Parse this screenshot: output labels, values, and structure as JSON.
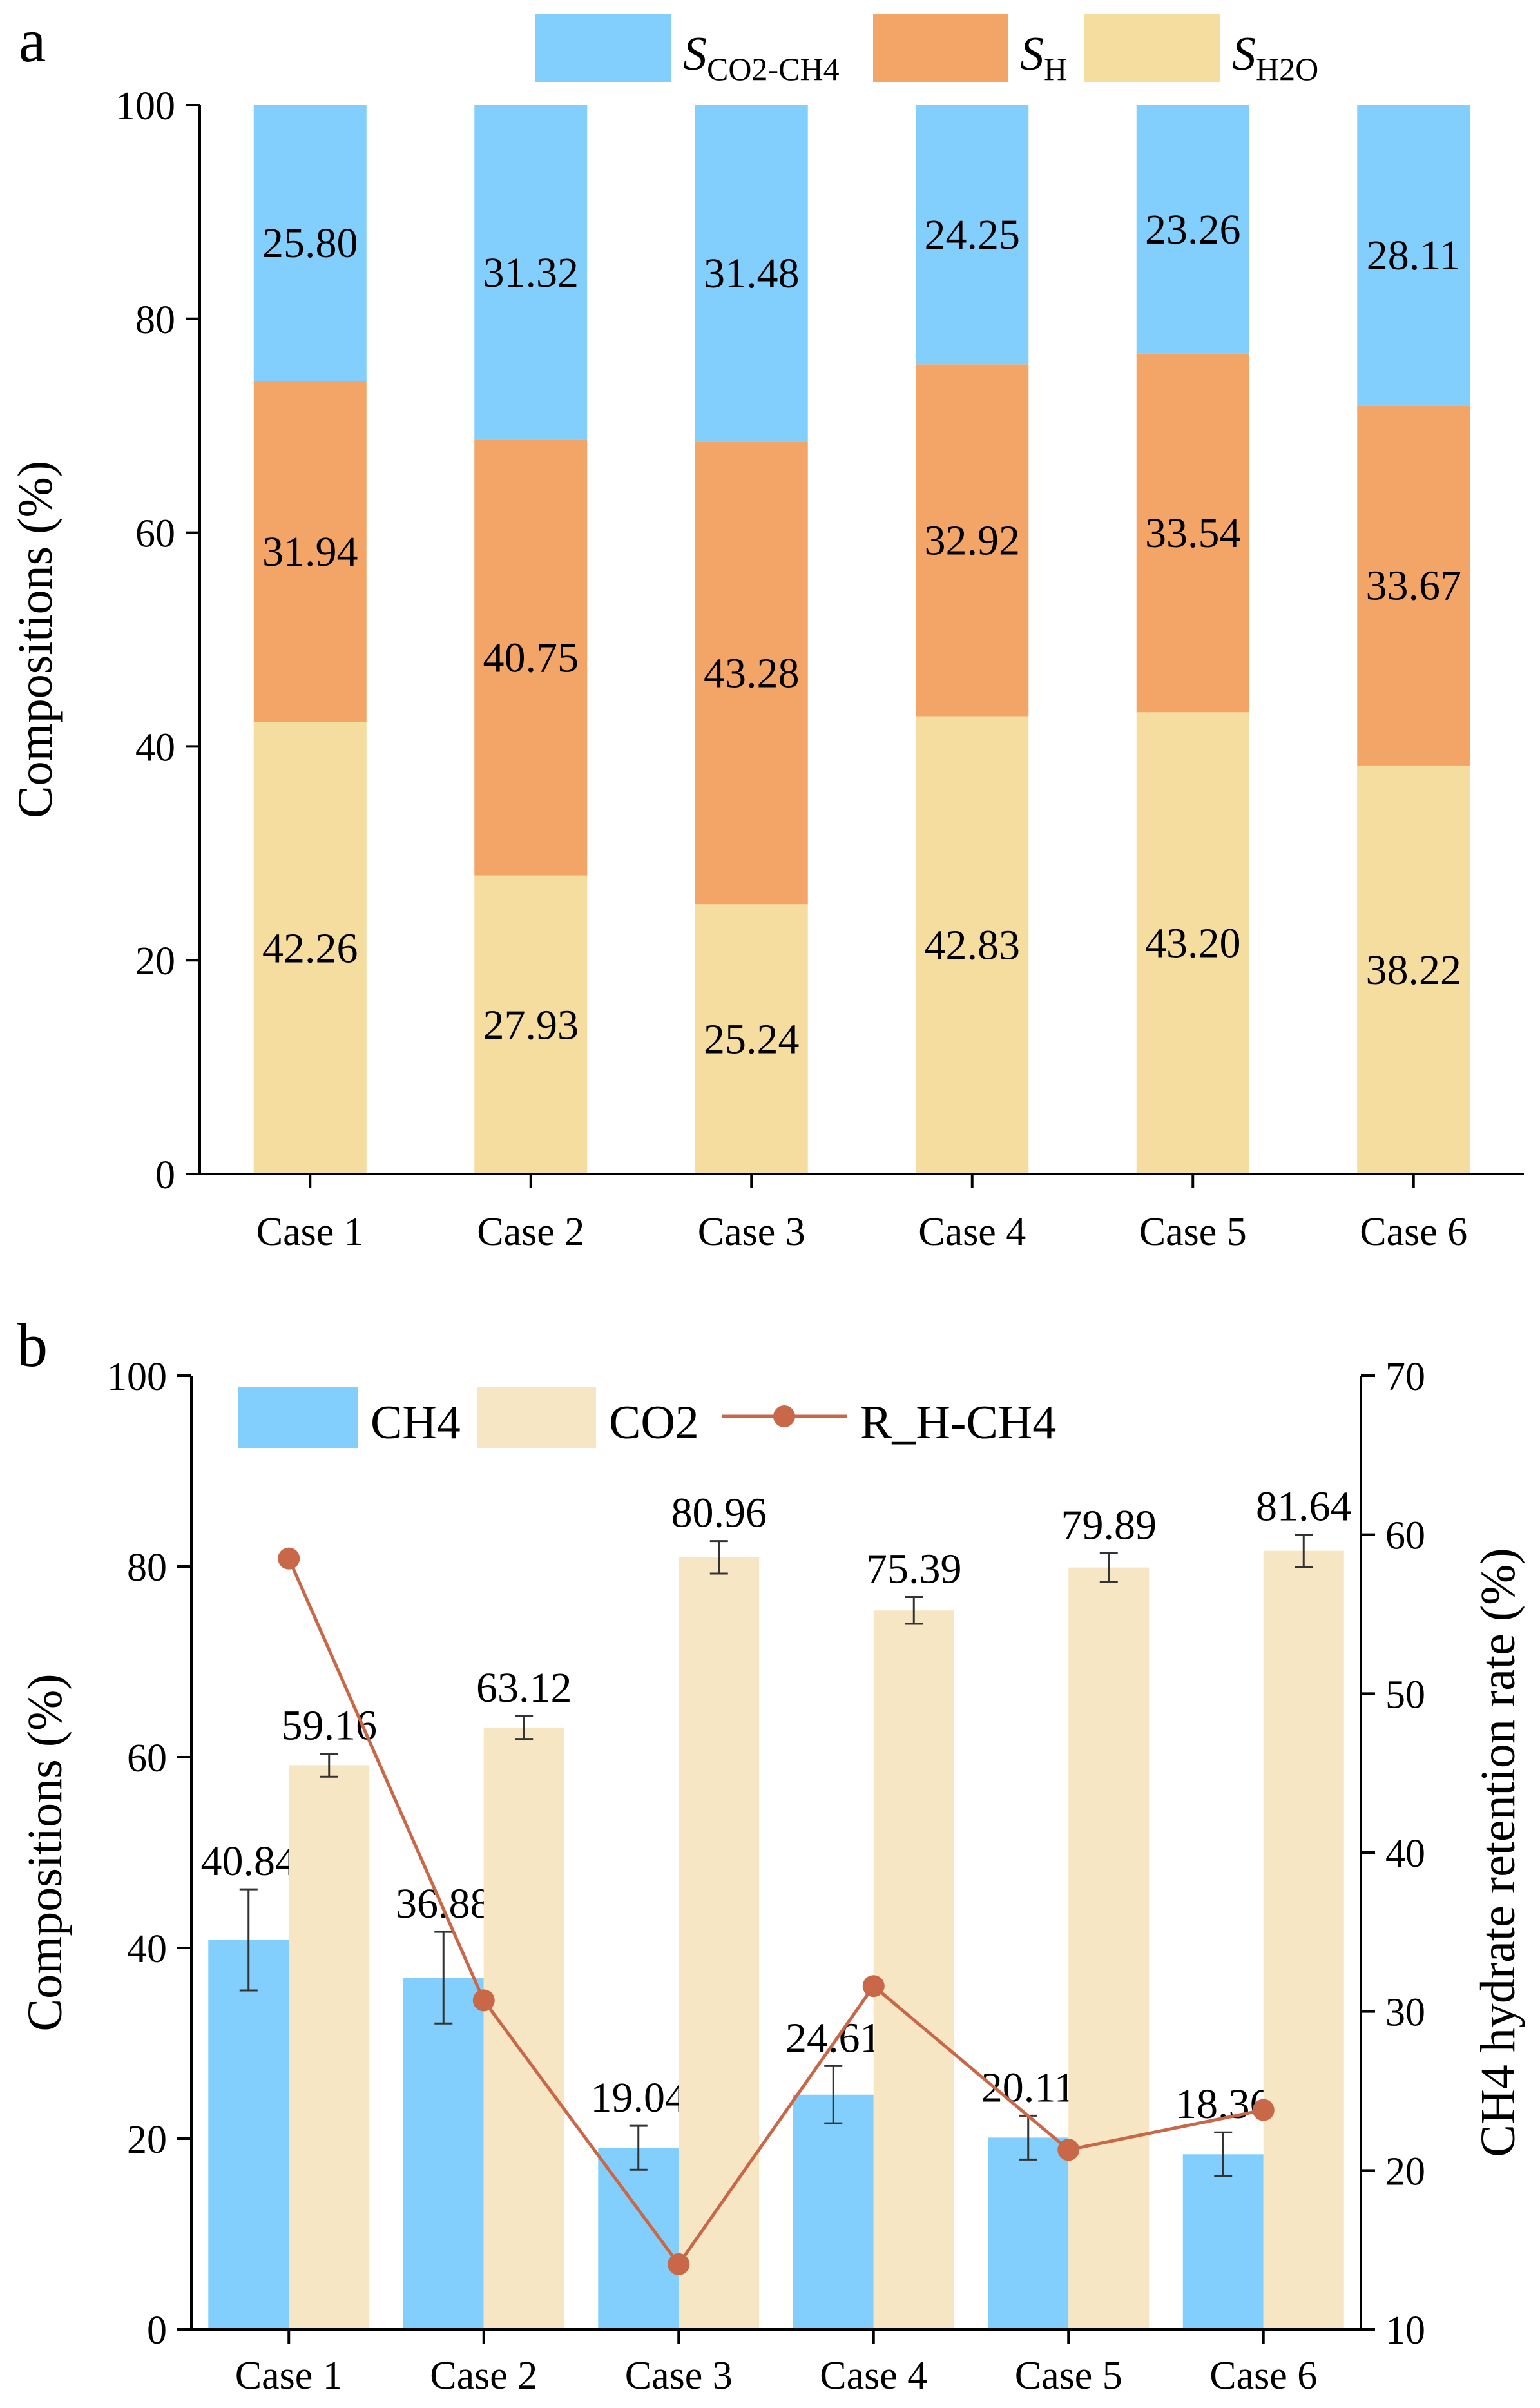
{
  "colors": {
    "blue": "#82CFFD",
    "orange": "#F2A566",
    "beige": "#F4DD9F",
    "beige_light": "#F7E6C3",
    "red": "#C96849"
  },
  "chart_data": [
    {
      "panel": "a",
      "type": "bar",
      "stacked": true,
      "categories": [
        "Case 1",
        "Case 2",
        "Case 3",
        "Case 4",
        "Case 5",
        "Case 6"
      ],
      "ylabel": "Compositions (%)",
      "ylim": [
        0,
        100
      ],
      "yticks": [
        0,
        20,
        40,
        60,
        80,
        100
      ],
      "legend_placement": "top",
      "series": [
        {
          "name": "S_H2O",
          "legend_main": "S",
          "legend_sub": "H2O",
          "color": "#F4DD9F",
          "values": [
            42.26,
            27.93,
            25.24,
            42.83,
            43.2,
            38.22
          ],
          "labels": [
            "42.26",
            "27.93",
            "25.24",
            "42.83",
            "43.20",
            "38.22"
          ]
        },
        {
          "name": "S_H",
          "legend_main": "S",
          "legend_sub": "H",
          "color": "#F2A566",
          "values": [
            31.94,
            40.75,
            43.28,
            32.92,
            33.54,
            33.67
          ],
          "labels": [
            "31.94",
            "40.75",
            "43.28",
            "32.92",
            "33.54",
            "33.67"
          ]
        },
        {
          "name": "S_CO2-CH4",
          "legend_main": "S",
          "legend_sub": "CO2-CH4",
          "color": "#82CFFD",
          "values": [
            25.8,
            31.32,
            31.48,
            24.25,
            23.26,
            28.11
          ],
          "labels": [
            "25.80",
            "31.32",
            "31.48",
            "24.25",
            "23.26",
            "28.11"
          ]
        }
      ]
    },
    {
      "panel": "b",
      "type": "bar",
      "categories": [
        "Case 1",
        "Case 2",
        "Case 3",
        "Case 4",
        "Case 5",
        "Case 6"
      ],
      "ylabel": "Compositions (%)",
      "ylim": [
        0,
        100
      ],
      "yticks": [
        0,
        20,
        40,
        60,
        80,
        100
      ],
      "y2label": "CH4 hydrate retention rate (%)",
      "y2lim": [
        10,
        70
      ],
      "y2ticks": [
        10,
        20,
        30,
        40,
        50,
        60,
        70
      ],
      "legend_placement": "top-left",
      "series": [
        {
          "name": "CH4",
          "color": "#82CFFD",
          "values": [
            40.84,
            36.88,
            19.04,
            24.61,
            20.11,
            18.36
          ],
          "labels": [
            "40.84",
            "36.88",
            "19.04",
            "24.61",
            "20.11",
            "18.36"
          ],
          "errors": [
            5.3,
            4.8,
            2.3,
            3.0,
            2.3,
            2.3
          ]
        },
        {
          "name": "CO2",
          "color": "#F7E6C3",
          "values": [
            59.16,
            63.12,
            80.96,
            75.39,
            79.89,
            81.64
          ],
          "labels": [
            "59.16",
            "63.12",
            "80.96",
            "75.39",
            "79.89",
            "81.64"
          ],
          "errors": [
            1.2,
            1.2,
            1.7,
            1.4,
            1.5,
            1.7
          ]
        },
        {
          "name": "R_H-CH4",
          "type": "line",
          "axis": "right",
          "color": "#C96849",
          "values": [
            58.5,
            30.7,
            14.1,
            31.6,
            21.3,
            23.8
          ]
        }
      ]
    }
  ]
}
